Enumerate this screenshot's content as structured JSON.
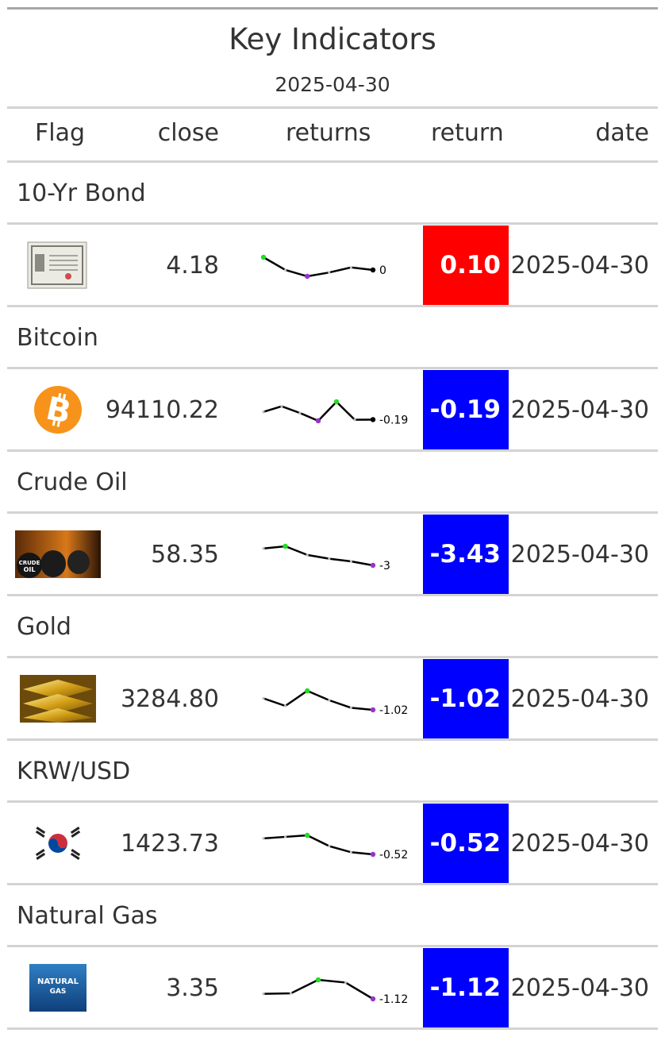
{
  "title": "Key Indicators",
  "subtitle": "2025-04-30",
  "columns": {
    "flag": "Flag",
    "close": "close",
    "returns": "returns",
    "return": "return",
    "date": "date"
  },
  "colors": {
    "positive": "#ff0000",
    "negative": "#0000ff",
    "spark_high": "#22dd22",
    "spark_low": "#9933cc",
    "spark_last": "#000000"
  },
  "rows": [
    {
      "group": "10-Yr Bond",
      "icon": "bond-certificate-icon",
      "close": "4.18",
      "spark": [
        0.2,
        0.1,
        0.05,
        0.08,
        0.12,
        0.1
      ],
      "spark_label": "0",
      "return": "0.10",
      "sign": "positive",
      "date": "2025-04-30"
    },
    {
      "group": "Bitcoin",
      "icon": "bitcoin-icon",
      "close": "94110.22",
      "spark": [
        0.5,
        1.0,
        0.4,
        -0.3,
        1.4,
        -0.2,
        -0.19
      ],
      "spark_label": "-0.19",
      "return": "-0.19",
      "sign": "negative",
      "date": "2025-04-30"
    },
    {
      "group": "Crude Oil",
      "icon": "crude-oil-barrels-icon",
      "close": "58.35",
      "spark": [
        -0.3,
        0.1,
        -1.5,
        -2.2,
        -2.7,
        -3.43
      ],
      "spark_label": "-3",
      "return": "-3.43",
      "sign": "negative",
      "date": "2025-04-30"
    },
    {
      "group": "Gold",
      "icon": "gold-bars-icon",
      "close": "3284.80",
      "spark": [
        0.2,
        -0.6,
        1.0,
        0.0,
        -0.8,
        -1.02
      ],
      "spark_label": "-1.02",
      "return": "-1.02",
      "sign": "negative",
      "date": "2025-04-30"
    },
    {
      "group": "KRW/USD",
      "icon": "korea-flag-icon",
      "close": "1423.73",
      "spark": [
        0.0,
        0.05,
        0.1,
        -0.25,
        -0.45,
        -0.52
      ],
      "spark_label": "-0.52",
      "return": "-0.52",
      "sign": "negative",
      "date": "2025-04-30"
    },
    {
      "group": "Natural Gas",
      "icon": "natural-gas-icon",
      "close": "3.35",
      "spark": [
        0.0,
        0.1,
        3.1,
        2.5,
        -1.12
      ],
      "spark_label": "-1.12",
      "return": "-1.12",
      "sign": "negative",
      "date": "2025-04-30"
    }
  ],
  "natural_gas_label_1": "NATURAL",
  "natural_gas_label_2": "GAS",
  "crude_label_1": "CRUDE",
  "crude_label_2": "OIL"
}
